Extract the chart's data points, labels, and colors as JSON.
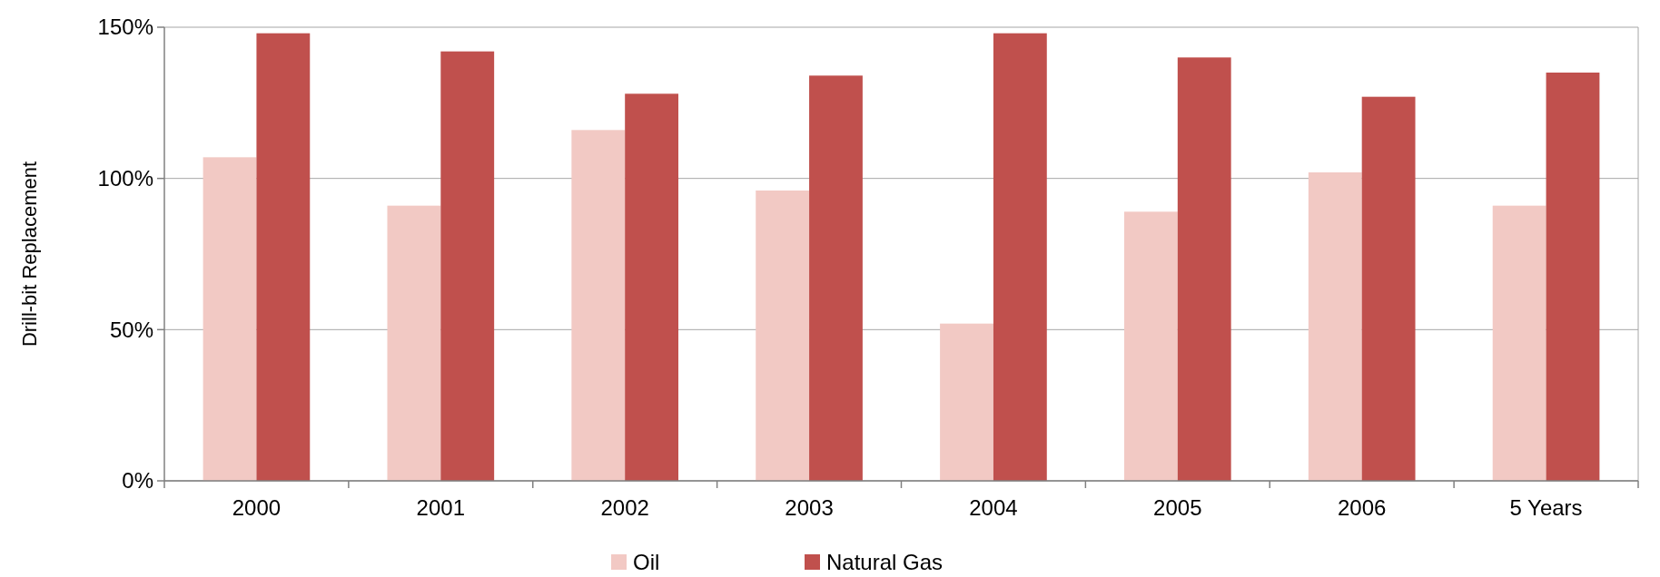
{
  "chart_data": {
    "type": "bar",
    "ylabel": "Drill-bit Replacement",
    "categories": [
      "2000",
      "2001",
      "2002",
      "2003",
      "2004",
      "2005",
      "2006",
      "5 Years"
    ],
    "series": [
      {
        "name": "Oil",
        "color": "#f2c9c4",
        "values": [
          107,
          91,
          116,
          96,
          52,
          89,
          102,
          91
        ]
      },
      {
        "name": "Natural Gas",
        "color": "#c0504d",
        "values": [
          148,
          142,
          128,
          134,
          148,
          140,
          127,
          135
        ]
      }
    ],
    "ylim": [
      0,
      150
    ],
    "yticks": [
      {
        "value": 0,
        "label": "0%"
      },
      {
        "value": 50,
        "label": "50%"
      },
      {
        "value": 100,
        "label": "100%"
      },
      {
        "value": 150,
        "label": "150%"
      }
    ],
    "grid": "y",
    "legend": "bottom"
  }
}
